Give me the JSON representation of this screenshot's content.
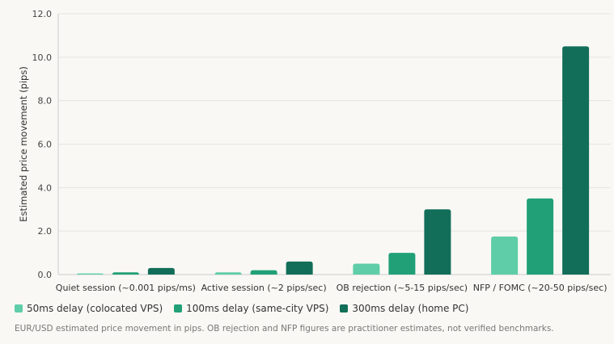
{
  "chart_data": {
    "type": "bar",
    "title": "",
    "xlabel": "",
    "ylabel": "Estimated price movement (pips)",
    "ylim": [
      0,
      12
    ],
    "yticks": [
      "0.0",
      "2.0",
      "4.0",
      "6.0",
      "8.0",
      "10.0",
      "12.0"
    ],
    "grid": true,
    "legend_position": "bottom-left",
    "categories": [
      "Quiet session (~0.001 pips/ms)",
      "Active session (~2 pips/sec)",
      "OB rejection (~5-15 pips/sec)",
      "NFP / FOMC (~20-50 pips/sec)"
    ],
    "series": [
      {
        "name": "50ms delay (colocated VPS)",
        "color": "#5ecda8",
        "values": [
          0.05,
          0.1,
          0.5,
          1.75
        ]
      },
      {
        "name": "100ms delay (same-city VPS)",
        "color": "#21a077",
        "values": [
          0.1,
          0.2,
          1.0,
          3.5
        ]
      },
      {
        "name": "300ms delay (home PC)",
        "color": "#126e59",
        "values": [
          0.3,
          0.6,
          3.0,
          10.5
        ]
      }
    ]
  },
  "footnote": "EUR/USD estimated price movement in pips. OB rejection and NFP figures are practitioner estimates, not verified benchmarks."
}
